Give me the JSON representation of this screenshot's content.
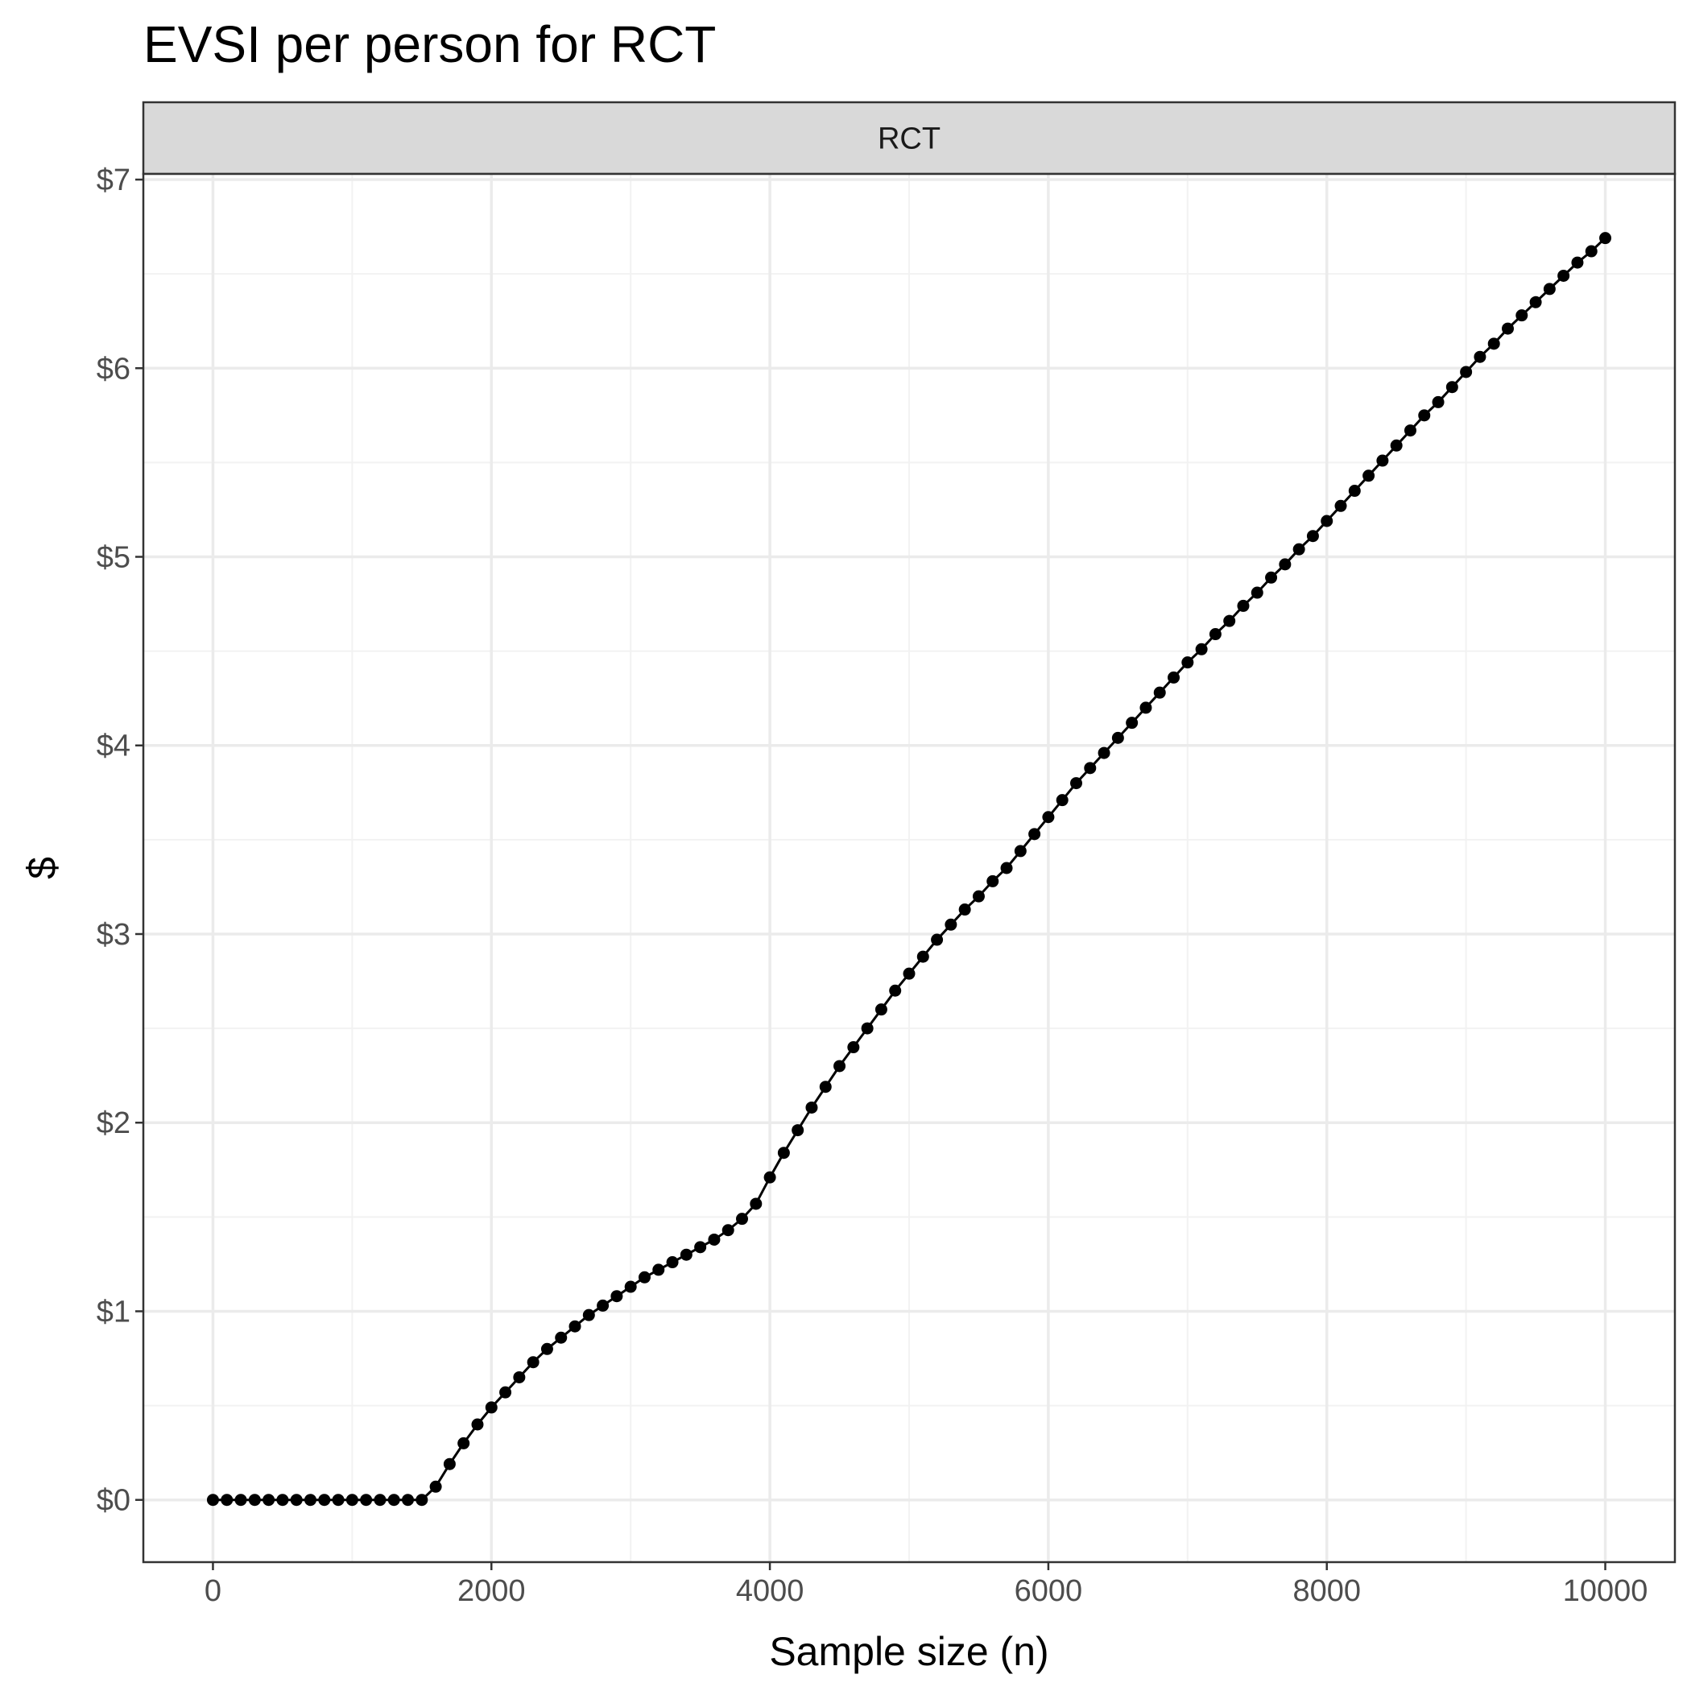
{
  "chart_data": {
    "type": "line",
    "title": "EVSI per person for RCT",
    "facet_label": "RCT",
    "xlabel": "Sample size (n)",
    "ylabel": "$",
    "xlim": [
      -500,
      10500
    ],
    "ylim": [
      -0.33,
      7.03
    ],
    "x_ticks": [
      0,
      2000,
      4000,
      6000,
      8000,
      10000
    ],
    "x_tick_labels": [
      "0",
      "2000",
      "4000",
      "6000",
      "8000",
      "10000"
    ],
    "y_ticks": [
      0,
      1,
      2,
      3,
      4,
      5,
      6,
      7
    ],
    "y_tick_labels": [
      "$0",
      "$1",
      "$2",
      "$3",
      "$4",
      "$5",
      "$6",
      "$7"
    ],
    "grid": true,
    "legend": "none",
    "colors": {
      "line": "#000000",
      "strip": "#d9d9d9",
      "grid_major": "#ebebeb",
      "grid_minor": "#f2f2f2",
      "border": "#333333"
    },
    "series": [
      {
        "x": [
          0,
          100,
          200,
          300,
          400,
          500,
          600,
          700,
          800,
          900,
          1000,
          1100,
          1200,
          1300,
          1400,
          1500,
          1600,
          1700,
          1800,
          1900,
          2000,
          2100,
          2200,
          2300,
          2400,
          2500,
          2600,
          2700,
          2800,
          2900,
          3000,
          3100,
          3200,
          3300,
          3400,
          3500,
          3600,
          3700,
          3800,
          3900,
          4000,
          4100,
          4200,
          4300,
          4400,
          4500,
          4600,
          4700,
          4800,
          4900,
          5000,
          5100,
          5200,
          5300,
          5400,
          5500,
          5600,
          5700,
          5800,
          5900,
          6000,
          6100,
          6200,
          6300,
          6400,
          6500,
          6600,
          6700,
          6800,
          6900,
          7000,
          7100,
          7200,
          7300,
          7400,
          7500,
          7600,
          7700,
          7800,
          7900,
          8000,
          8100,
          8200,
          8300,
          8400,
          8500,
          8600,
          8700,
          8800,
          8900,
          9000,
          9100,
          9200,
          9300,
          9400,
          9500,
          9600,
          9700,
          9800,
          9900,
          10000
        ],
        "y": [
          0,
          0,
          0,
          0,
          0,
          0,
          0,
          0,
          0,
          0,
          0,
          0,
          0,
          0,
          0,
          0,
          0.07,
          0.19,
          0.3,
          0.4,
          0.49,
          0.57,
          0.65,
          0.73,
          0.8,
          0.86,
          0.92,
          0.98,
          1.03,
          1.08,
          1.13,
          1.18,
          1.22,
          1.26,
          1.3,
          1.34,
          1.38,
          1.43,
          1.49,
          1.57,
          1.71,
          1.84,
          1.96,
          2.08,
          2.19,
          2.3,
          2.4,
          2.5,
          2.6,
          2.7,
          2.79,
          2.88,
          2.97,
          3.05,
          3.13,
          3.2,
          3.28,
          3.35,
          3.44,
          3.53,
          3.62,
          3.71,
          3.8,
          3.88,
          3.96,
          4.04,
          4.12,
          4.2,
          4.28,
          4.36,
          4.44,
          4.51,
          4.59,
          4.66,
          4.74,
          4.81,
          4.89,
          4.96,
          5.04,
          5.11,
          5.19,
          5.27,
          5.35,
          5.43,
          5.51,
          5.59,
          5.67,
          5.75,
          5.82,
          5.9,
          5.98,
          6.06,
          6.13,
          6.21,
          6.28,
          6.35,
          6.42,
          6.49,
          6.56,
          6.62,
          6.69
        ]
      }
    ]
  }
}
